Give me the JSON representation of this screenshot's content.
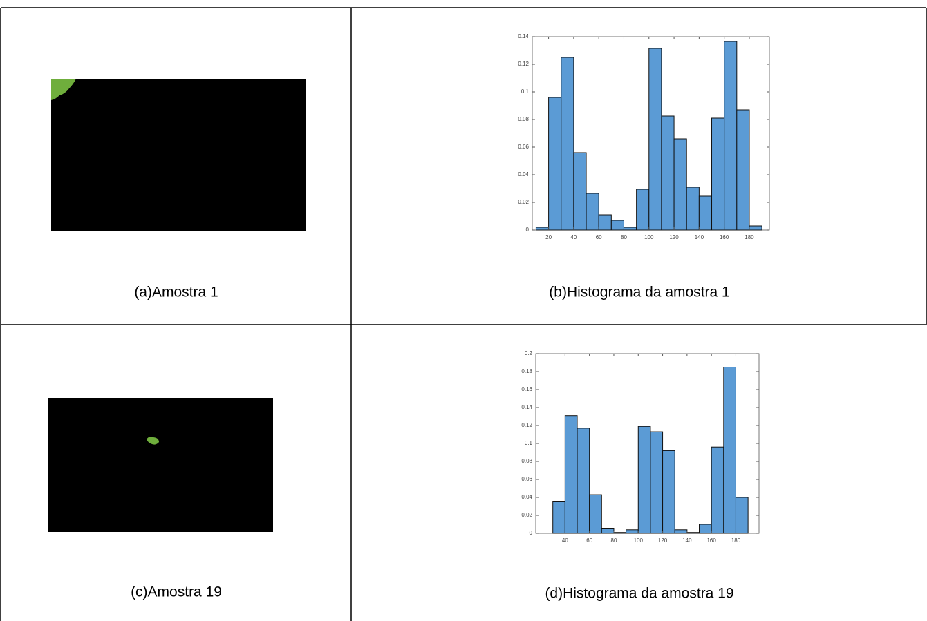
{
  "captions": [
    "(a)Amostra 1",
    "(b)Histograma da amostra 1",
    "(c)Amostra 19",
    "(d)Histograma da amostra 19"
  ],
  "chart_data": [
    {
      "type": "histogram",
      "bins": [
        10,
        20,
        30,
        40,
        50,
        60,
        70,
        80,
        90,
        100,
        110,
        120,
        130,
        140,
        150,
        160,
        170,
        180,
        190
      ],
      "values": [
        0.002,
        0.096,
        0.125,
        0.056,
        0.0265,
        0.011,
        0.007,
        0.002,
        0.0295,
        0.1315,
        0.0825,
        0.066,
        0.031,
        0.0245,
        0.081,
        0.1365,
        0.087,
        0.003
      ],
      "color": "#5b9bd5",
      "xlim": [
        7,
        196
      ],
      "xticks": [
        20,
        40,
        60,
        80,
        100,
        120,
        140,
        160,
        180
      ],
      "ylim": [
        0,
        0.14
      ],
      "yticks": [
        0,
        0.02,
        0.04,
        0.06,
        0.08,
        0.1,
        0.12,
        0.14
      ]
    },
    {
      "type": "histogram",
      "bins": [
        30,
        40,
        50,
        60,
        70,
        80,
        90,
        100,
        110,
        120,
        130,
        140,
        150,
        160,
        170,
        180,
        190
      ],
      "values": [
        0.035,
        0.131,
        0.117,
        0.043,
        0.005,
        0.001,
        0.004,
        0.119,
        0.113,
        0.092,
        0.004,
        0.001,
        0.01,
        0.096,
        0.185,
        0.04
      ],
      "color": "#5b9bd5",
      "xlim": [
        16,
        199
      ],
      "xticks": [
        40,
        60,
        80,
        100,
        120,
        140,
        160,
        180
      ],
      "ylim": [
        0,
        0.2
      ],
      "yticks": [
        0,
        0.02,
        0.04,
        0.06,
        0.08,
        0.1,
        0.12,
        0.14,
        0.16,
        0.18,
        0.2
      ]
    }
  ]
}
